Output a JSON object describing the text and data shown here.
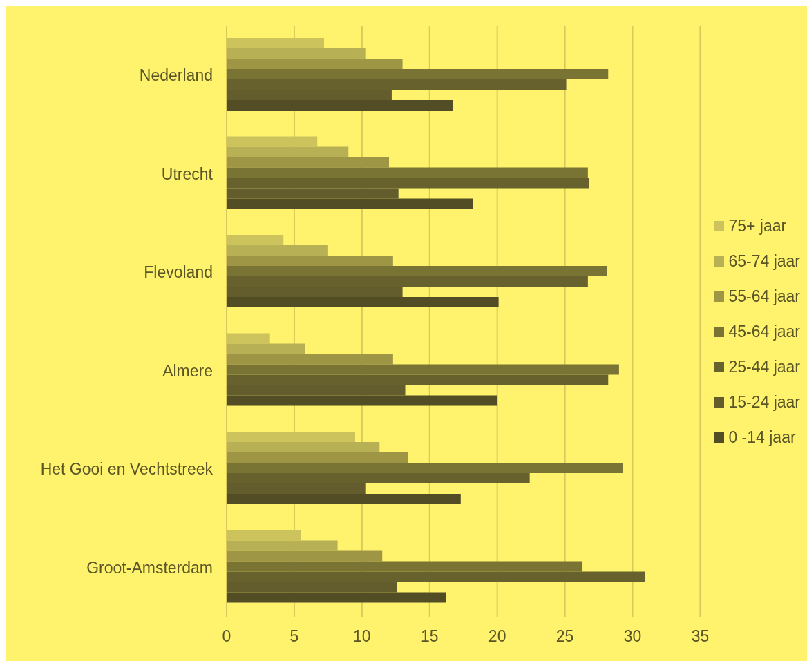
{
  "chart_data": {
    "type": "bar",
    "orientation": "horizontal",
    "categories": [
      "Nederland",
      "Utrecht",
      "Flevoland",
      "Almere",
      "Het Gooi en Vechtstreek",
      "Groot-Amsterdam"
    ],
    "series": [
      {
        "name": "75+ jaar",
        "color": "#cdc35c",
        "values": [
          7.2,
          6.7,
          4.2,
          3.2,
          9.5,
          5.5
        ]
      },
      {
        "name": "65-74 jaar",
        "color": "#b8b054",
        "values": [
          10.3,
          9.0,
          7.5,
          5.8,
          11.3,
          8.2
        ]
      },
      {
        "name": "55-64 jaar",
        "color": "#9e9545",
        "values": [
          13.0,
          12.0,
          12.3,
          12.3,
          13.4,
          11.5
        ]
      },
      {
        "name": "45-64 jaar",
        "color": "#7a7434",
        "values": [
          28.2,
          26.7,
          28.1,
          29.0,
          29.3,
          26.3
        ]
      },
      {
        "name": "25-44 jaar",
        "color": "#67612d",
        "values": [
          25.1,
          26.8,
          26.7,
          28.2,
          22.4,
          30.9
        ]
      },
      {
        "name": "15-24 jaar",
        "color": "#635c2c",
        "values": [
          12.2,
          12.7,
          13.0,
          13.2,
          10.3,
          12.6
        ]
      },
      {
        "name": "0 -14 jaar",
        "color": "#524d25",
        "values": [
          16.7,
          18.2,
          20.1,
          20.0,
          17.3,
          16.2
        ]
      }
    ],
    "xlim": [
      0,
      35
    ],
    "xticks": [
      0,
      5,
      10,
      15,
      20,
      25,
      30,
      35
    ],
    "grid": "x",
    "legend": "right"
  }
}
